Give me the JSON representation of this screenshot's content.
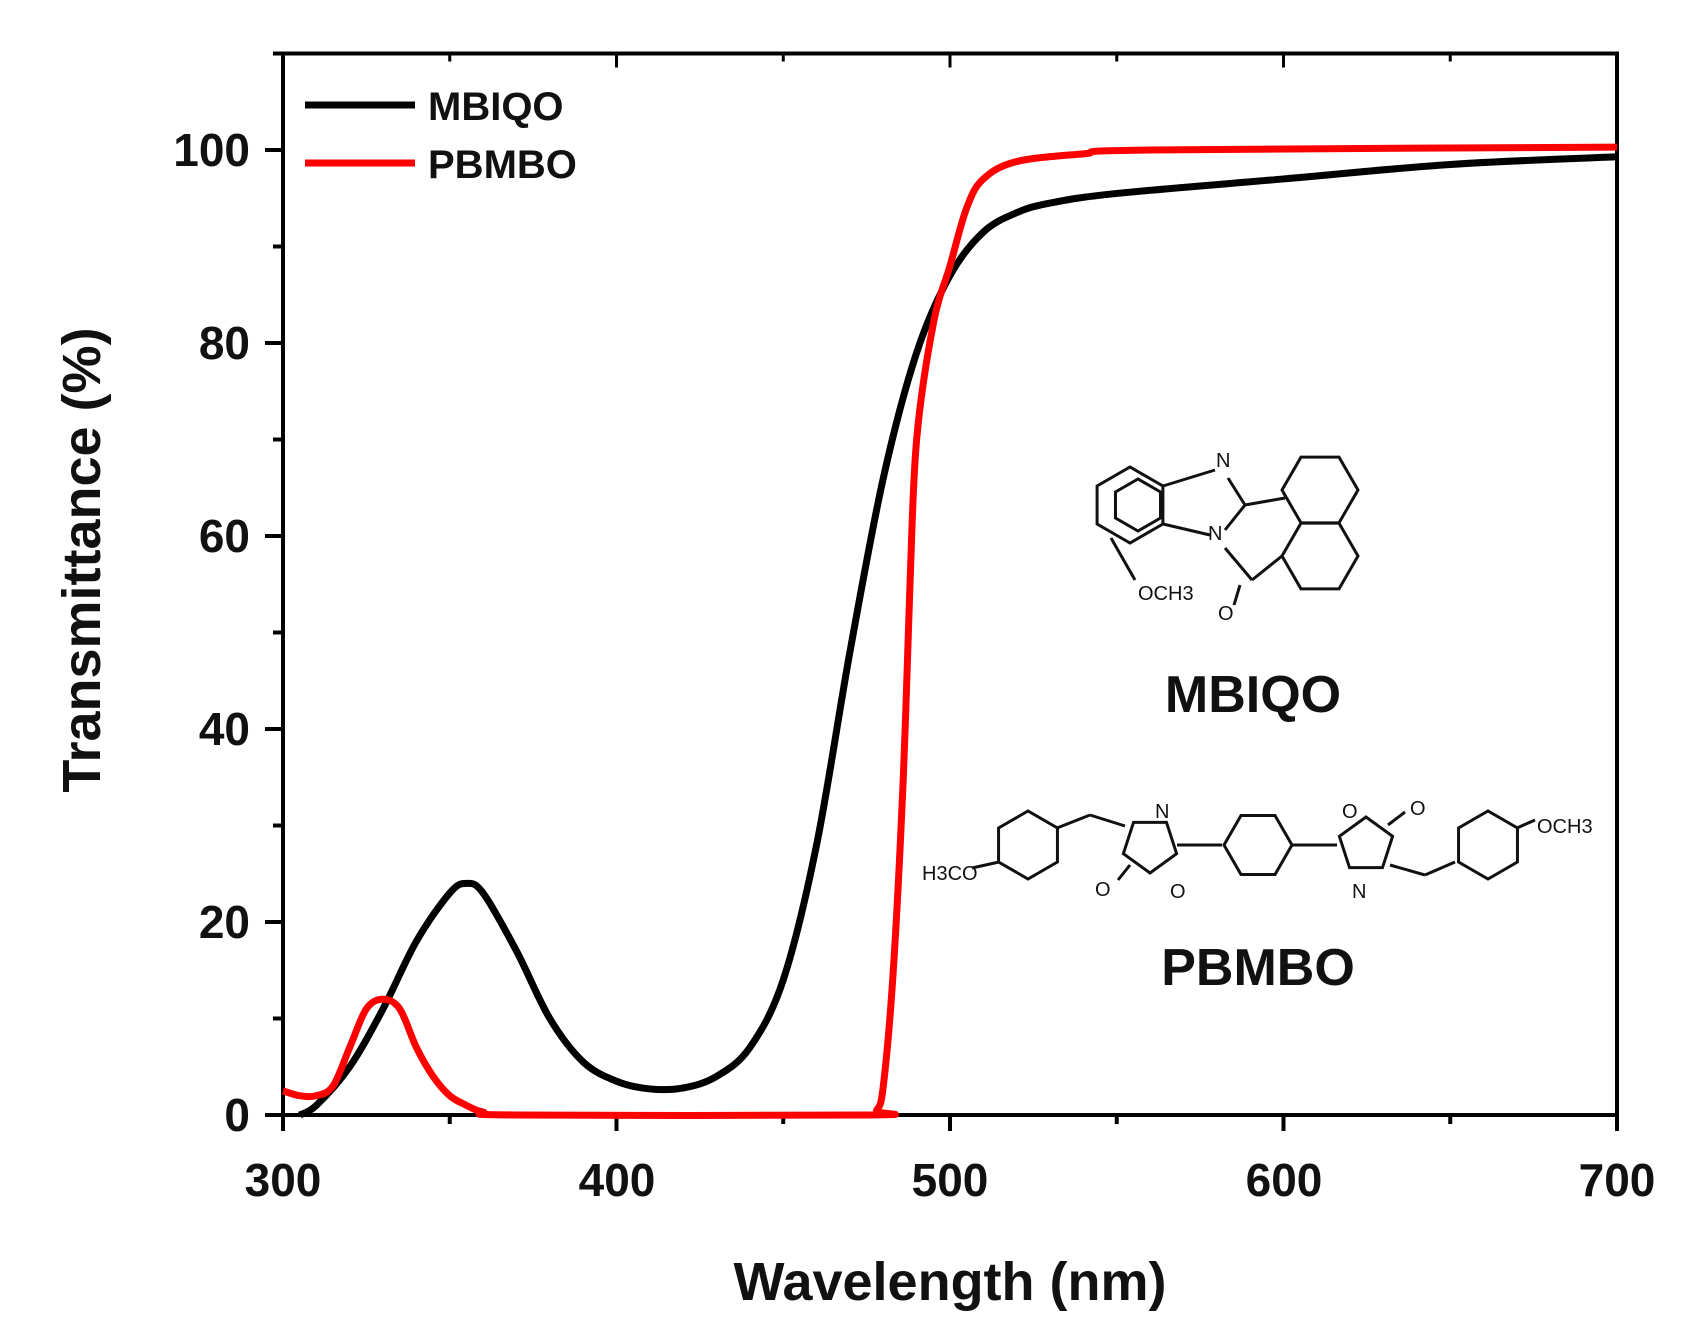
{
  "chart_data": {
    "type": "line",
    "xlabel": "Wavelength (nm)",
    "ylabel": "Transmittance (%)",
    "xlim": [
      300,
      700
    ],
    "ylim": [
      0,
      110
    ],
    "x_ticks": [
      "300",
      "400",
      "500",
      "600",
      "700"
    ],
    "y_ticks": [
      "0",
      "20",
      "40",
      "60",
      "80",
      "100"
    ],
    "grid": false,
    "legend_position": "top-left",
    "series": [
      {
        "name": "MBIQO",
        "color": "#000000",
        "x": [
          305,
          310,
          320,
          330,
          340,
          350,
          355,
          360,
          370,
          380,
          390,
          400,
          410,
          420,
          430,
          440,
          450,
          460,
          470,
          480,
          490,
          500,
          510,
          520,
          530,
          550,
          600,
          650,
          700
        ],
        "y": [
          0,
          1,
          5,
          11,
          18,
          23,
          24,
          23,
          17,
          10,
          5.5,
          3.5,
          2.7,
          2.8,
          4,
          7,
          14,
          28,
          48,
          66,
          79,
          87,
          91.5,
          93.5,
          94.5,
          95.5,
          97,
          98.5,
          99.3
        ]
      },
      {
        "name": "PBMBO",
        "color": "#ff0000",
        "x": [
          300,
          305,
          310,
          315,
          320,
          325,
          330,
          335,
          340,
          345,
          350,
          355,
          360,
          370,
          475,
          478,
          480,
          483,
          486,
          488,
          490,
          495,
          500,
          505,
          510,
          520,
          540,
          560,
          700
        ],
        "y": [
          2.5,
          2,
          2,
          3,
          7,
          11,
          12,
          11,
          7,
          4,
          2,
          1,
          0.3,
          0,
          0,
          0.5,
          3,
          15,
          35,
          55,
          70,
          82,
          88,
          94,
          97,
          98.8,
          99.6,
          100,
          100.3
        ]
      }
    ],
    "annotations": {
      "mbiqo": {
        "name": "MBIQO",
        "atoms": {
          "n1": "N",
          "n2": "N",
          "o": "O",
          "och3": "OCH3"
        }
      },
      "pbmbo": {
        "name": "PBMBO",
        "atoms": {
          "h3co": "H3CO",
          "och3": "OCH3",
          "n1": "N",
          "n2": "N",
          "o1": "O",
          "o2": "O",
          "o3": "O",
          "o4": "O"
        }
      }
    }
  }
}
